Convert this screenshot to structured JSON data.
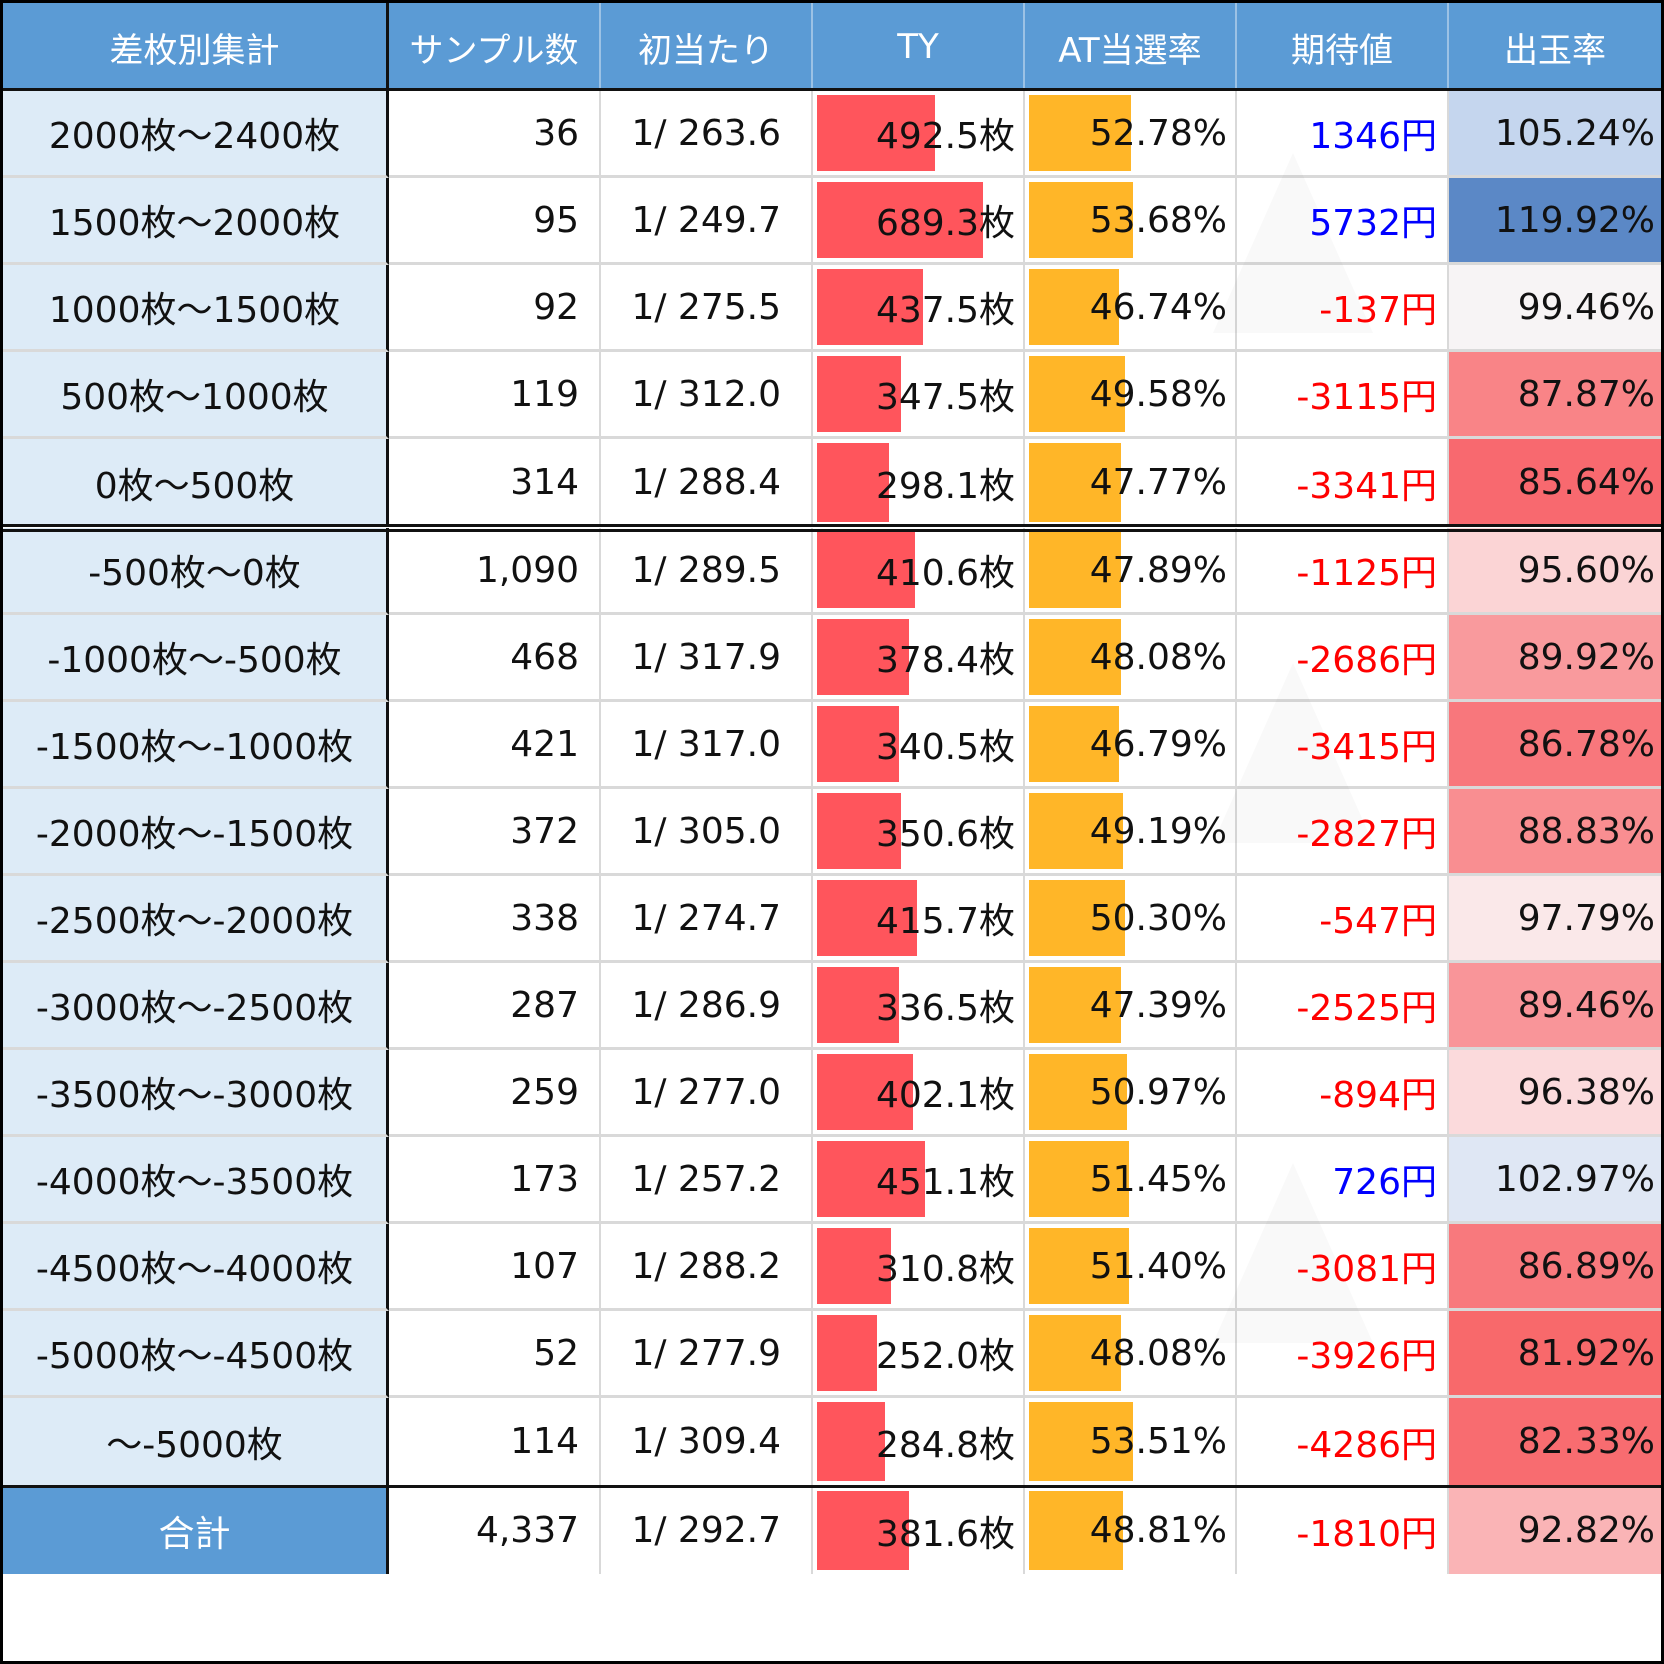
{
  "table": {
    "title": "差枚別集計",
    "headers": [
      "差枚別集計",
      "サンプル数",
      "初当たり",
      "TY",
      "AT当選率",
      "期待値",
      "出玉率"
    ],
    "rows": [
      {
        "range": "2000枚～2400枚",
        "samples": "36",
        "first_hit": "1/ 263.6",
        "ty": "492.5枚",
        "ty_bar_pct": 59,
        "at_rate": "52.78%",
        "at_bar_pct": 51,
        "expected": "1346円",
        "expected_sign": "pos",
        "payout": "105.24%",
        "payout_color": "#c5d6ee"
      },
      {
        "range": "1500枚～2000枚",
        "samples": "95",
        "first_hit": "1/ 249.7",
        "ty": "689.3枚",
        "ty_bar_pct": 83,
        "at_rate": "53.68%",
        "at_bar_pct": 52,
        "expected": "5732円",
        "expected_sign": "pos",
        "payout": "119.92%",
        "payout_color": "#5b88c6"
      },
      {
        "range": "1000枚～1500枚",
        "samples": "92",
        "first_hit": "1/ 275.5",
        "ty": "437.5枚",
        "ty_bar_pct": 53,
        "at_rate": "46.74%",
        "at_bar_pct": 45,
        "expected": "-137円",
        "expected_sign": "neg",
        "payout": "99.46%",
        "payout_color": "#f7f4f5"
      },
      {
        "range": "500枚～1000枚",
        "samples": "119",
        "first_hit": "1/ 312.0",
        "ty": "347.5枚",
        "ty_bar_pct": 42,
        "at_rate": "49.58%",
        "at_bar_pct": 48,
        "expected": "-3115円",
        "expected_sign": "neg",
        "payout": "87.87%",
        "payout_color": "#f98487"
      },
      {
        "range": "0枚～500枚",
        "samples": "314",
        "first_hit": "1/ 288.4",
        "ty": "298.1枚",
        "ty_bar_pct": 36,
        "at_rate": "47.77%",
        "at_bar_pct": 46,
        "expected": "-3341円",
        "expected_sign": "neg",
        "payout": "85.64%",
        "payout_color": "#f8696f"
      },
      {
        "range": "-500枚～0枚",
        "samples": "1,090",
        "first_hit": "1/ 289.5",
        "ty": "410.6枚",
        "ty_bar_pct": 49,
        "at_rate": "47.89%",
        "at_bar_pct": 46,
        "expected": "-1125円",
        "expected_sign": "neg",
        "payout": "95.60%",
        "payout_color": "#fbd4d5"
      },
      {
        "range": "-1000枚～-500枚",
        "samples": "468",
        "first_hit": "1/ 317.9",
        "ty": "378.4枚",
        "ty_bar_pct": 46,
        "at_rate": "48.08%",
        "at_bar_pct": 46,
        "expected": "-2686円",
        "expected_sign": "neg",
        "payout": "89.92%",
        "payout_color": "#f99a9d"
      },
      {
        "range": "-1500枚～-1000枚",
        "samples": "421",
        "first_hit": "1/ 317.0",
        "ty": "340.5枚",
        "ty_bar_pct": 41,
        "at_rate": "46.79%",
        "at_bar_pct": 45,
        "expected": "-3415円",
        "expected_sign": "neg",
        "payout": "86.78%",
        "payout_color": "#f8777c"
      },
      {
        "range": "-2000枚～-1500枚",
        "samples": "372",
        "first_hit": "1/ 305.0",
        "ty": "350.6枚",
        "ty_bar_pct": 42,
        "at_rate": "49.19%",
        "at_bar_pct": 47,
        "expected": "-2827円",
        "expected_sign": "neg",
        "payout": "88.83%",
        "payout_color": "#f98e91"
      },
      {
        "range": "-2500枚～-2000枚",
        "samples": "338",
        "first_hit": "1/ 274.7",
        "ty": "415.7枚",
        "ty_bar_pct": 50,
        "at_rate": "50.30%",
        "at_bar_pct": 48,
        "expected": "-547円",
        "expected_sign": "neg",
        "payout": "97.79%",
        "payout_color": "#fae8e9"
      },
      {
        "range": "-3000枚～-2500枚",
        "samples": "287",
        "first_hit": "1/ 286.9",
        "ty": "336.5枚",
        "ty_bar_pct": 41,
        "at_rate": "47.39%",
        "at_bar_pct": 46,
        "expected": "-2525円",
        "expected_sign": "neg",
        "payout": "89.46%",
        "payout_color": "#f99599"
      },
      {
        "range": "-3500枚～-3000枚",
        "samples": "259",
        "first_hit": "1/ 277.0",
        "ty": "402.1枚",
        "ty_bar_pct": 48,
        "at_rate": "50.97%",
        "at_bar_pct": 49,
        "expected": "-894円",
        "expected_sign": "neg",
        "payout": "96.38%",
        "payout_color": "#fbdadc"
      },
      {
        "range": "-4000枚～-3500枚",
        "samples": "173",
        "first_hit": "1/ 257.2",
        "ty": "451.1枚",
        "ty_bar_pct": 54,
        "at_rate": "51.45%",
        "at_bar_pct": 50,
        "expected": "726円",
        "expected_sign": "pos",
        "payout": "102.97%",
        "payout_color": "#dfe7f4"
      },
      {
        "range": "-4500枚～-4000枚",
        "samples": "107",
        "first_hit": "1/ 288.2",
        "ty": "310.8枚",
        "ty_bar_pct": 37,
        "at_rate": "51.40%",
        "at_bar_pct": 50,
        "expected": "-3081円",
        "expected_sign": "neg",
        "payout": "86.89%",
        "payout_color": "#f8797d"
      },
      {
        "range": "-5000枚～-4500枚",
        "samples": "52",
        "first_hit": "1/ 277.9",
        "ty": "252.0枚",
        "ty_bar_pct": 30,
        "at_rate": "48.08%",
        "at_bar_pct": 46,
        "expected": "-3926円",
        "expected_sign": "neg",
        "payout": "81.92%",
        "payout_color": "#f8696b"
      },
      {
        "range": "～-5000枚",
        "samples": "114",
        "first_hit": "1/ 309.4",
        "ty": "284.8枚",
        "ty_bar_pct": 34,
        "at_rate": "53.51%",
        "at_bar_pct": 52,
        "expected": "-4286円",
        "expected_sign": "neg",
        "payout": "82.33%",
        "payout_color": "#f86c70"
      }
    ],
    "total": {
      "range": "合計",
      "samples": "4,337",
      "first_hit": "1/ 292.7",
      "ty": "381.6枚",
      "ty_bar_pct": 46,
      "at_rate": "48.81%",
      "at_bar_pct": 47,
      "expected": "-1810円",
      "expected_sign": "neg",
      "payout": "92.82%",
      "payout_color": "#fab4b6"
    }
  },
  "colors": {
    "header_bg": "#5b9bd5",
    "range_bg": "#ddebf7",
    "ty_bar": "#ff555c",
    "at_bar": "#ffb628",
    "positive_text": "#0000ff",
    "negative_text": "#ff0000"
  }
}
